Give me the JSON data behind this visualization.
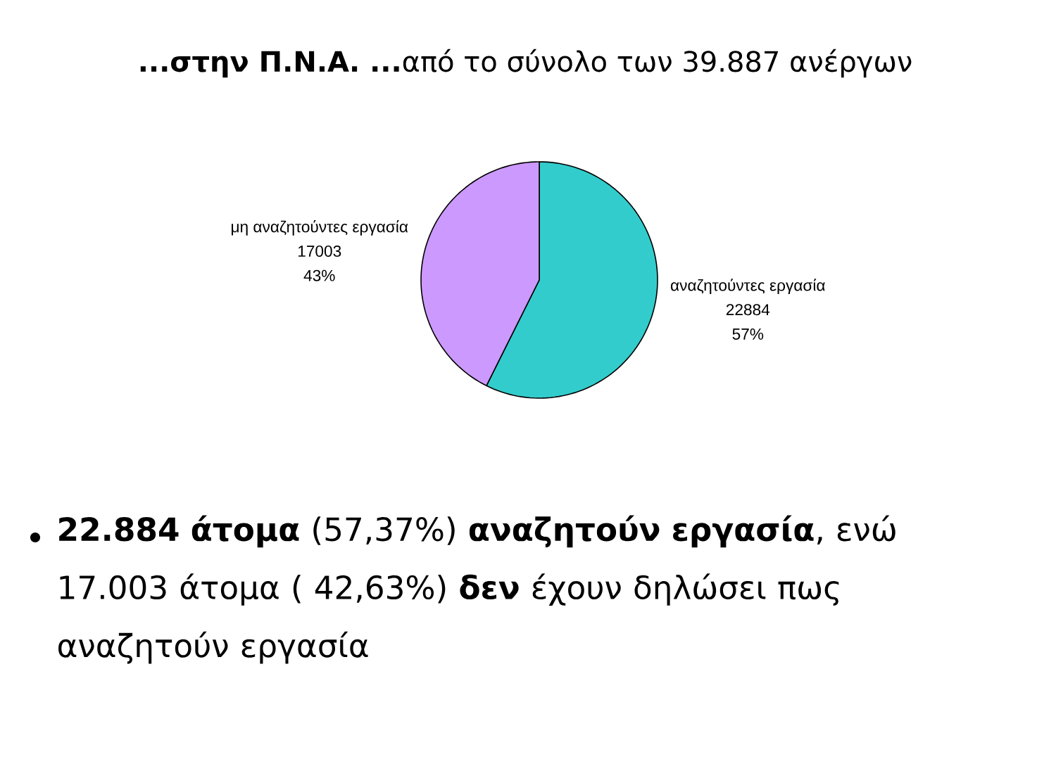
{
  "chart_data": {
    "type": "pie",
    "title": "**...στην Π.Ν.Α. ...**από το σύνολο των 39.887  ανέργων",
    "categories": [
      "αναζητούντες εργασία",
      "μη αναζητούντες εργασία"
    ],
    "values": [
      22884,
      17003
    ],
    "colors": [
      "#33cccc",
      "#cc99ff"
    ],
    "data_labels": true,
    "annotations": [
      "57%",
      "43%",
      "**22.884 άτομα** (57,37%) **αναζητούν εργασία**, ενώ 17.003 άτομα ( 42,63%) **δεν** έχουν δηλώσει πως αναζητούν εργασία"
    ]
  }
}
